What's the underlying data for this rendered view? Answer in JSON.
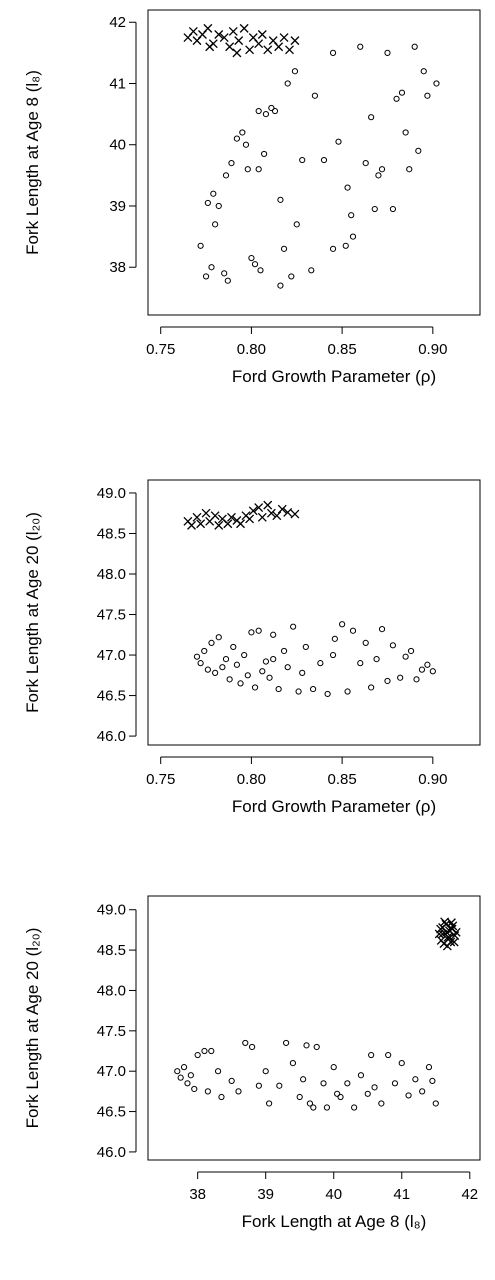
{
  "chart_data": [
    {
      "type": "scatter",
      "xlabel": "Ford Growth Parameter (ρ)",
      "ylabel": "Fork Length at Age 8 (l₈)",
      "xlim": [
        0.743,
        0.926
      ],
      "ylim": [
        37.22,
        42.2
      ],
      "xticks": [
        0.75,
        {
          "value": 0.8,
          "label": "0.80"
        },
        0.85,
        {
          "value": 0.9,
          "label": "0.90"
        }
      ],
      "yticks": [
        38,
        39,
        40,
        41,
        42
      ],
      "series": [
        {
          "marker": "circle",
          "color": "#000000",
          "x": [
            0.772,
            0.775,
            0.778,
            0.78,
            0.785,
            0.787,
            0.776,
            0.779,
            0.782,
            0.786,
            0.789,
            0.792,
            0.795,
            0.798,
            0.8,
            0.802,
            0.805,
            0.807,
            0.804,
            0.808,
            0.811,
            0.813,
            0.816,
            0.818,
            0.816,
            0.822,
            0.825,
            0.82,
            0.824,
            0.828,
            0.833,
            0.835,
            0.84,
            0.845,
            0.848,
            0.853,
            0.856,
            0.855,
            0.86,
            0.863,
            0.866,
            0.868,
            0.87,
            0.872,
            0.875,
            0.878,
            0.88,
            0.883,
            0.885,
            0.887,
            0.89,
            0.892,
            0.895,
            0.897,
            0.902,
            0.845,
            0.852,
            0.804,
            0.797
          ],
          "values": [
            38.35,
            37.85,
            38.0,
            38.7,
            37.9,
            37.78,
            39.05,
            39.2,
            39.0,
            39.5,
            39.7,
            40.1,
            40.2,
            39.6,
            38.15,
            38.05,
            37.95,
            39.85,
            40.55,
            40.5,
            40.6,
            40.55,
            39.1,
            38.3,
            37.7,
            37.85,
            38.7,
            41.0,
            41.2,
            39.75,
            37.95,
            40.8,
            39.75,
            41.5,
            40.05,
            39.3,
            38.5,
            38.85,
            41.6,
            39.7,
            40.45,
            38.95,
            39.5,
            39.6,
            41.5,
            38.95,
            40.75,
            40.85,
            40.2,
            39.6,
            41.6,
            39.9,
            41.2,
            40.8,
            41.0,
            38.3,
            38.35,
            39.6,
            40.0
          ]
        },
        {
          "marker": "cross",
          "color": "#000000",
          "x": [
            0.765,
            0.768,
            0.77,
            0.773,
            0.776,
            0.779,
            0.782,
            0.785,
            0.788,
            0.79,
            0.793,
            0.796,
            0.799,
            0.801,
            0.804,
            0.806,
            0.809,
            0.812,
            0.815,
            0.818,
            0.821,
            0.824,
            0.777,
            0.792
          ],
          "values": [
            41.75,
            41.85,
            41.7,
            41.8,
            41.9,
            41.65,
            41.8,
            41.75,
            41.6,
            41.85,
            41.7,
            41.9,
            41.55,
            41.75,
            41.65,
            41.8,
            41.55,
            41.7,
            41.6,
            41.75,
            41.55,
            41.7,
            41.6,
            41.5
          ]
        }
      ]
    },
    {
      "type": "scatter",
      "xlabel": "Ford Growth Parameter (ρ)",
      "ylabel": "Fork Length at Age 20 (l₂₀)",
      "xlim": [
        0.743,
        0.926
      ],
      "ylim": [
        45.89,
        49.16
      ],
      "xticks": [
        0.75,
        {
          "value": 0.8,
          "label": "0.80"
        },
        0.85,
        {
          "value": 0.9,
          "label": "0.90"
        }
      ],
      "yticks": [
        {
          "value": 46,
          "label": "46.0"
        },
        46.5,
        {
          "value": 47,
          "label": "47.0"
        },
        47.5,
        {
          "value": 48,
          "label": "48.0"
        },
        48.5,
        {
          "value": 49,
          "label": "49.0"
        }
      ],
      "series": [
        {
          "marker": "circle",
          "color": "#000000",
          "x": [
            0.77,
            0.772,
            0.774,
            0.776,
            0.778,
            0.78,
            0.782,
            0.784,
            0.786,
            0.788,
            0.79,
            0.792,
            0.794,
            0.796,
            0.798,
            0.8,
            0.802,
            0.804,
            0.806,
            0.808,
            0.81,
            0.812,
            0.815,
            0.818,
            0.82,
            0.823,
            0.826,
            0.83,
            0.834,
            0.838,
            0.842,
            0.846,
            0.85,
            0.853,
            0.856,
            0.86,
            0.863,
            0.866,
            0.869,
            0.872,
            0.875,
            0.878,
            0.882,
            0.885,
            0.888,
            0.891,
            0.894,
            0.897,
            0.9,
            0.812,
            0.828,
            0.845
          ],
          "values": [
            46.98,
            46.9,
            47.05,
            46.82,
            47.15,
            46.78,
            47.22,
            46.85,
            46.95,
            46.7,
            47.1,
            46.88,
            46.65,
            47.0,
            46.75,
            47.28,
            46.6,
            47.3,
            46.8,
            46.92,
            46.72,
            47.25,
            46.58,
            47.05,
            46.85,
            47.35,
            46.55,
            47.1,
            46.58,
            46.9,
            46.52,
            47.2,
            47.38,
            46.55,
            47.3,
            46.9,
            47.15,
            46.6,
            46.95,
            47.32,
            46.68,
            47.12,
            46.72,
            46.98,
            47.05,
            46.7,
            46.82,
            46.88,
            46.8,
            46.95,
            46.78,
            47.0
          ]
        },
        {
          "marker": "cross",
          "color": "#000000",
          "x": [
            0.765,
            0.767,
            0.77,
            0.772,
            0.775,
            0.777,
            0.78,
            0.782,
            0.784,
            0.787,
            0.789,
            0.792,
            0.794,
            0.797,
            0.799,
            0.801,
            0.804,
            0.806,
            0.809,
            0.811,
            0.814,
            0.817,
            0.82,
            0.824
          ],
          "values": [
            48.65,
            48.6,
            48.7,
            48.62,
            48.75,
            48.65,
            48.72,
            48.6,
            48.68,
            48.62,
            48.7,
            48.66,
            48.62,
            48.72,
            48.68,
            48.78,
            48.82,
            48.7,
            48.85,
            48.75,
            48.72,
            48.8,
            48.76,
            48.74
          ]
        }
      ]
    },
    {
      "type": "scatter",
      "xlabel": "Fork Length at Age 8 (l₈)",
      "ylabel": "Fork Length at Age 20 (l₂₀)",
      "xlim": [
        37.27,
        42.15
      ],
      "ylim": [
        45.9,
        49.17
      ],
      "xticks": [
        38,
        39,
        40,
        41,
        42
      ],
      "yticks": [
        {
          "value": 46,
          "label": "46.0"
        },
        46.5,
        {
          "value": 47,
          "label": "47.0"
        },
        47.5,
        {
          "value": 48,
          "label": "48.0"
        },
        48.5,
        {
          "value": 49,
          "label": "49.0"
        }
      ],
      "series": [
        {
          "marker": "circle",
          "color": "#000000",
          "x": [
            37.7,
            37.75,
            37.8,
            37.85,
            37.9,
            37.95,
            38.0,
            38.1,
            38.15,
            38.2,
            38.3,
            38.35,
            38.5,
            38.6,
            38.7,
            38.8,
            38.9,
            39.0,
            39.05,
            39.2,
            39.3,
            39.4,
            39.5,
            39.55,
            39.6,
            39.65,
            39.7,
            39.75,
            39.85,
            39.9,
            40.0,
            40.05,
            40.1,
            40.2,
            40.3,
            40.4,
            40.5,
            40.55,
            40.6,
            40.7,
            40.8,
            40.9,
            41.0,
            41.1,
            41.2,
            41.3,
            41.4,
            41.45,
            41.5
          ],
          "values": [
            47.0,
            46.92,
            47.05,
            46.85,
            46.95,
            46.78,
            47.2,
            47.25,
            46.75,
            47.25,
            47.0,
            46.68,
            46.88,
            46.75,
            47.35,
            47.3,
            46.82,
            47.0,
            46.6,
            46.82,
            47.35,
            47.1,
            46.68,
            46.9,
            47.32,
            46.6,
            46.55,
            47.3,
            46.85,
            46.55,
            47.05,
            46.72,
            46.68,
            46.85,
            46.55,
            46.95,
            46.72,
            47.2,
            46.8,
            46.6,
            47.2,
            46.85,
            47.1,
            46.7,
            46.9,
            46.75,
            47.05,
            46.88,
            46.6
          ]
        },
        {
          "marker": "cross",
          "color": "#000000",
          "x": [
            41.55,
            41.58,
            41.6,
            41.62,
            41.65,
            41.68,
            41.7,
            41.72,
            41.75,
            41.78,
            41.8,
            41.57,
            41.63,
            41.67,
            41.73,
            41.77,
            41.6,
            41.7,
            41.66,
            41.74
          ],
          "values": [
            48.7,
            48.62,
            48.78,
            48.58,
            48.82,
            48.66,
            48.74,
            48.6,
            48.8,
            48.68,
            48.72,
            48.76,
            48.85,
            48.55,
            48.84,
            48.6,
            48.7,
            48.65,
            48.72,
            48.76
          ]
        }
      ]
    }
  ]
}
